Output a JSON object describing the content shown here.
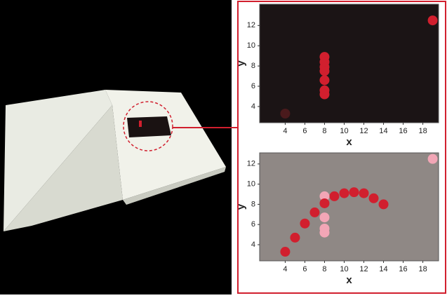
{
  "chart_data": [
    {
      "type": "scatter",
      "xlabel": "x",
      "ylabel": "y",
      "background": "#1b1415",
      "xlim": [
        1.4,
        19.6
      ],
      "ylim": [
        2.4,
        14.1
      ],
      "xticks": [
        4,
        6,
        8,
        10,
        12,
        14,
        16,
        18
      ],
      "yticks": [
        4,
        6,
        8,
        10,
        12
      ],
      "series": [
        {
          "color": "#d11f2e",
          "x": [
            8,
            8,
            8,
            8,
            8,
            8,
            8,
            19
          ],
          "y": [
            8.9,
            8.4,
            7.9,
            7.5,
            6.6,
            5.6,
            5.2,
            12.5
          ]
        },
        {
          "color": "#4a1a1c",
          "x": [
            4
          ],
          "y": [
            3.3
          ]
        }
      ]
    },
    {
      "type": "scatter",
      "xlabel": "x",
      "ylabel": "y",
      "background": "#8f8885",
      "xlim": [
        1.4,
        19.6
      ],
      "ylim": [
        2.4,
        13.1
      ],
      "xticks": [
        4,
        6,
        8,
        10,
        12,
        14,
        16,
        18
      ],
      "yticks": [
        4,
        6,
        8,
        10,
        12
      ],
      "series": [
        {
          "color": "#f2a6b6",
          "x": [
            8,
            8,
            8,
            8,
            19
          ],
          "y": [
            8.8,
            6.7,
            5.6,
            5.2,
            12.5
          ]
        },
        {
          "color": "#d11f2e",
          "x": [
            4,
            5,
            6,
            7,
            8,
            9,
            10,
            11,
            12,
            13,
            14
          ],
          "y": [
            3.3,
            4.7,
            6.1,
            7.2,
            8.1,
            8.8,
            9.1,
            9.2,
            9.1,
            8.6,
            8.0
          ]
        }
      ]
    }
  ]
}
